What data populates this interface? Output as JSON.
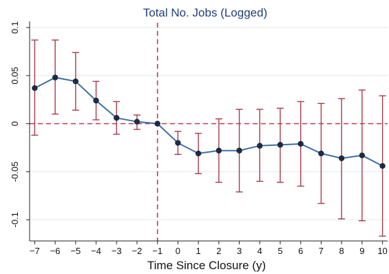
{
  "chart_data": {
    "type": "line",
    "title": "Total No. Jobs (Logged)",
    "xlabel": "Time Since Closure (y)",
    "ylabel": "",
    "x": [
      -7,
      -6,
      -5,
      -4,
      -3,
      -2,
      -1,
      0,
      1,
      2,
      3,
      4,
      5,
      6,
      7,
      8,
      9,
      10
    ],
    "x_tick_labels": [
      "−7",
      "−6",
      "−5",
      "−4",
      "−3",
      "−2",
      "−1",
      "0",
      "1",
      "2",
      "3",
      "4",
      "5",
      "6",
      "7",
      "8",
      "9",
      "10"
    ],
    "xlim": [
      -7.25,
      10.25
    ],
    "ylim": [
      -0.122,
      0.105
    ],
    "y_ticks": [
      0.1,
      0.05,
      0,
      -0.05,
      -0.1
    ],
    "y_tick_labels": [
      "0.1",
      "0.05",
      "0",
      "-0.05",
      "-0.1"
    ],
    "grid": true,
    "series": [
      {
        "estimate": [
          0.037,
          0.048,
          0.044,
          0.024,
          0.006,
          0.002,
          0.0,
          -0.02,
          -0.031,
          -0.028,
          -0.028,
          -0.023,
          -0.022,
          -0.021,
          -0.031,
          -0.036,
          -0.033,
          -0.044
        ],
        "ci_upper": [
          0.087,
          0.087,
          0.074,
          0.044,
          0.023,
          0.009,
          0.0,
          -0.008,
          -0.01,
          0.005,
          0.015,
          0.015,
          0.016,
          0.023,
          0.021,
          0.026,
          0.035,
          0.029
        ],
        "ci_lower": [
          -0.012,
          0.01,
          0.014,
          0.004,
          -0.011,
          -0.006,
          0.0,
          -0.032,
          -0.052,
          -0.061,
          -0.071,
          -0.06,
          -0.061,
          -0.065,
          -0.083,
          -0.099,
          -0.101,
          -0.117
        ]
      }
    ],
    "reference_lines": {
      "x": -1,
      "y": 0
    },
    "colors": {
      "line": "#3e6fa0",
      "marker": "#1b2b45",
      "ci": "#a83a48",
      "reference": "#c8374a",
      "title": "#1f3f7a"
    }
  }
}
